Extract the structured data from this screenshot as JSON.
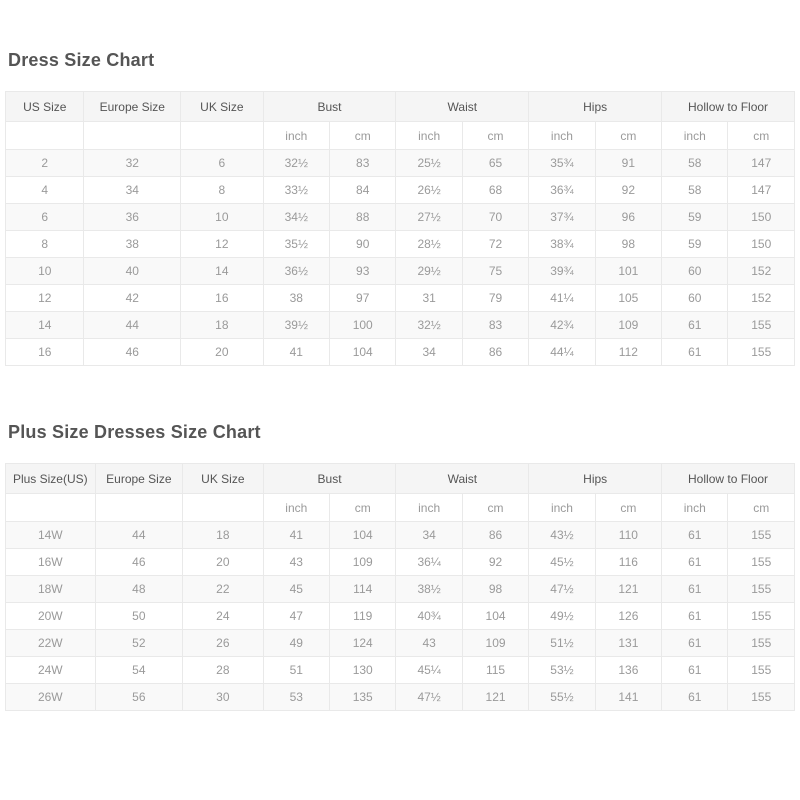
{
  "colors": {
    "page_bg": "#ffffff",
    "title_text": "#555555",
    "header_bg": "#f5f5f5",
    "header_text": "#555555",
    "cell_text": "#9a9a9a",
    "stripe_bg": "#f9f9f9",
    "border": "#e9e9e9"
  },
  "tables": [
    {
      "title": "Dress Size Chart",
      "size_column_headers": [
        "US Size",
        "Europe Size",
        "UK Size"
      ],
      "measure_groups": [
        {
          "label": "Bust",
          "units": [
            "inch",
            "cm"
          ]
        },
        {
          "label": "Waist",
          "units": [
            "inch",
            "cm"
          ]
        },
        {
          "label": "Hips",
          "units": [
            "inch",
            "cm"
          ]
        },
        {
          "label": "Hollow to Floor",
          "units": [
            "inch",
            "cm"
          ]
        }
      ],
      "rows": [
        [
          "2",
          "32",
          "6",
          "32½",
          "83",
          "25½",
          "65",
          "35¾",
          "91",
          "58",
          "147"
        ],
        [
          "4",
          "34",
          "8",
          "33½",
          "84",
          "26½",
          "68",
          "36¾",
          "92",
          "58",
          "147"
        ],
        [
          "6",
          "36",
          "10",
          "34½",
          "88",
          "27½",
          "70",
          "37¾",
          "96",
          "59",
          "150"
        ],
        [
          "8",
          "38",
          "12",
          "35½",
          "90",
          "28½",
          "72",
          "38¾",
          "98",
          "59",
          "150"
        ],
        [
          "10",
          "40",
          "14",
          "36½",
          "93",
          "29½",
          "75",
          "39¾",
          "101",
          "60",
          "152"
        ],
        [
          "12",
          "42",
          "16",
          "38",
          "97",
          "31",
          "79",
          "41¼",
          "105",
          "60",
          "152"
        ],
        [
          "14",
          "44",
          "18",
          "39½",
          "100",
          "32½",
          "83",
          "42¾",
          "109",
          "61",
          "155"
        ],
        [
          "16",
          "46",
          "20",
          "41",
          "104",
          "34",
          "86",
          "44¼",
          "112",
          "61",
          "155"
        ]
      ]
    },
    {
      "title": "Plus Size Dresses Size Chart",
      "size_column_headers": [
        "Plus Size(US)",
        "Europe Size",
        "UK Size"
      ],
      "measure_groups": [
        {
          "label": "Bust",
          "units": [
            "inch",
            "cm"
          ]
        },
        {
          "label": "Waist",
          "units": [
            "inch",
            "cm"
          ]
        },
        {
          "label": "Hips",
          "units": [
            "inch",
            "cm"
          ]
        },
        {
          "label": "Hollow to Floor",
          "units": [
            "inch",
            "cm"
          ]
        }
      ],
      "rows": [
        [
          "14W",
          "44",
          "18",
          "41",
          "104",
          "34",
          "86",
          "43½",
          "110",
          "61",
          "155"
        ],
        [
          "16W",
          "46",
          "20",
          "43",
          "109",
          "36¼",
          "92",
          "45½",
          "116",
          "61",
          "155"
        ],
        [
          "18W",
          "48",
          "22",
          "45",
          "114",
          "38½",
          "98",
          "47½",
          "121",
          "61",
          "155"
        ],
        [
          "20W",
          "50",
          "24",
          "47",
          "119",
          "40¾",
          "104",
          "49½",
          "126",
          "61",
          "155"
        ],
        [
          "22W",
          "52",
          "26",
          "49",
          "124",
          "43",
          "109",
          "51½",
          "131",
          "61",
          "155"
        ],
        [
          "24W",
          "54",
          "28",
          "51",
          "130",
          "45¼",
          "115",
          "53½",
          "136",
          "61",
          "155"
        ],
        [
          "26W",
          "56",
          "30",
          "53",
          "135",
          "47½",
          "121",
          "55½",
          "141",
          "61",
          "155"
        ]
      ]
    }
  ]
}
